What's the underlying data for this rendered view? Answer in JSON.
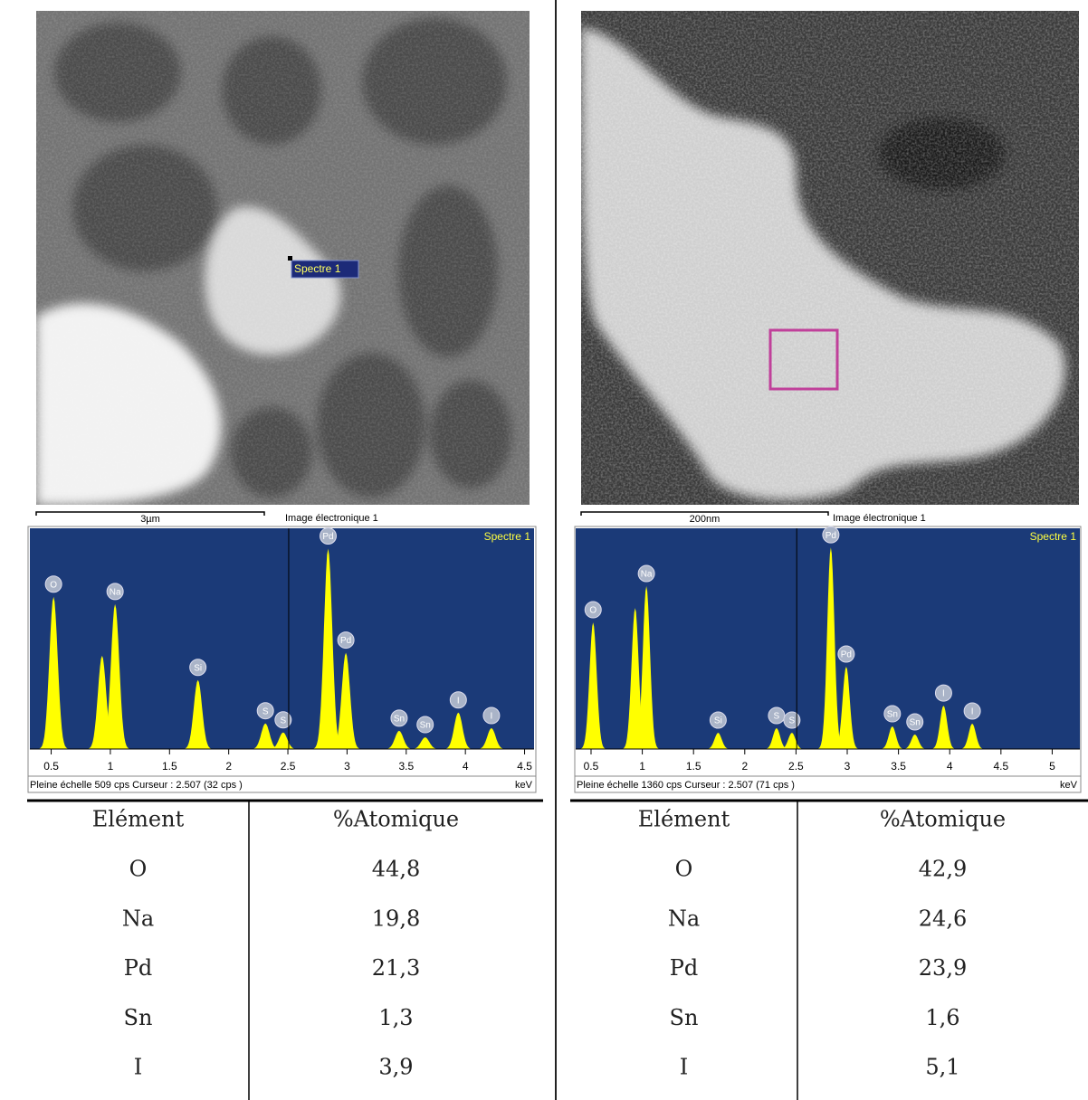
{
  "panels": [
    {
      "image": {
        "tag": "Spectre 1",
        "scale_bar": "3µm",
        "caption": "Image électronique 1"
      },
      "spectrum": {
        "type": "spectrum",
        "title": "Spectre 1",
        "xlim": [
          0.32,
          4.58
        ],
        "ylim": [
          0,
          509
        ],
        "xticks": [
          0.5,
          1,
          1.5,
          2,
          2.5,
          3,
          3.5,
          4,
          4.5
        ],
        "unit": "keV",
        "cursor": 2.507,
        "footer": "Pleine échelle 509 cps  Curseur : 2.507  (32 cps )",
        "color": "#ffff00",
        "peaks": {
          "x": [
            0.52,
            0.93,
            1.04,
            1.74,
            2.31,
            2.46,
            2.84,
            2.99,
            3.44,
            3.66,
            3.94,
            4.22
          ],
          "y": [
            351,
            215,
            334,
            159,
            59,
            38,
            462,
            222,
            42,
            27,
            84,
            48
          ],
          "labels": [
            "O",
            null,
            "Na",
            "Si",
            "S",
            "S",
            "Pd",
            "Pd",
            "Sn",
            "Sn",
            "I",
            "I"
          ]
        }
      },
      "table": {
        "header": [
          "Elément",
          "%Atomique"
        ],
        "rows": [
          [
            "O",
            "44,8"
          ],
          [
            "Na",
            "19,8"
          ],
          [
            "Pd",
            "21,3"
          ],
          [
            "Sn",
            "1,3"
          ],
          [
            "I",
            "3,9"
          ]
        ]
      }
    },
    {
      "image": {
        "scale_bar": "200nm",
        "caption": "Image électronique 1"
      },
      "spectrum": {
        "type": "spectrum",
        "title": "Spectre 1",
        "xlim": [
          0.35,
          5.27
        ],
        "ylim": [
          0,
          1360
        ],
        "xticks": [
          0.5,
          1,
          1.5,
          2,
          2.5,
          3,
          3.5,
          4,
          4.5,
          5
        ],
        "unit": "keV",
        "cursor": 2.507,
        "footer": "Pleine échelle 1360 cps  Curseur : 2.507  (71 cps )",
        "color": "#ffff00",
        "peaks": {
          "x": [
            0.52,
            0.93,
            1.04,
            1.74,
            2.31,
            2.46,
            2.84,
            2.99,
            3.44,
            3.66,
            3.94,
            4.22
          ],
          "y": [
            780,
            869,
            1003,
            100,
            128,
            100,
            1242,
            507,
            139,
            89,
            267,
            156
          ],
          "labels": [
            "O",
            null,
            "Na",
            "Si",
            "S",
            "S",
            "Pd",
            "Pd",
            "Sn",
            "Sn",
            "I",
            "I"
          ]
        }
      },
      "table": {
        "header": [
          "Elément",
          "%Atomique"
        ],
        "rows": [
          [
            "O",
            "42,9"
          ],
          [
            "Na",
            "24,6"
          ],
          [
            "Pd",
            "23,9"
          ],
          [
            "Sn",
            "1,6"
          ],
          [
            "I",
            "5,1"
          ]
        ]
      }
    }
  ]
}
